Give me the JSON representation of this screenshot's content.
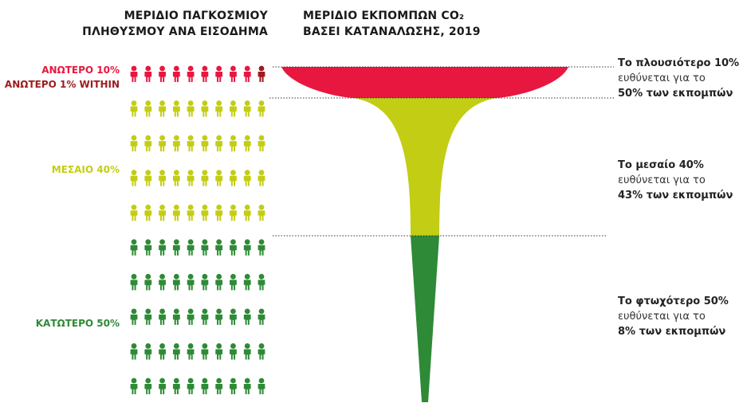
{
  "headers": {
    "population": [
      "ΜΕΡΙΔΙΟ ΠΑΓΚΟΣΜΙΟΥ",
      "ΠΛΗΘΥΣΜΟΥ ΑΝΑ ΕΙΣΟΔΗΜΑ"
    ],
    "emissions": [
      "ΜΕΡΙΔΙΟ ΕΚΠΟΜΠΩΝ CO₂",
      "ΒΑΣΕΙ ΚΑΤΑΝΑΛΩΣΗΣ, 2019"
    ]
  },
  "groups": {
    "top10": "ΑΝΩΤΕΡΟ 10%",
    "top1": "ΑΝΩΤΕΡΟ 1% WITHIN",
    "middle40": "ΜΕΣΑΙΟ 40%",
    "bottom50": "ΚΑΤΩΤΕΡΟ 50%"
  },
  "notes": [
    {
      "line1": "Το πλουσιότερο 10%",
      "line2": "ευθύνεται για το",
      "line3": "50% των εκπομπών"
    },
    {
      "line1": "Το μεσαίο 40%",
      "line2": "ευθύνεται για το",
      "line3": "43% των εκπομπών"
    },
    {
      "line1": "Το φτωχότερο 50%",
      "line2": "ευθύνεται για το",
      "line3": "8% των εκπομπών"
    }
  ],
  "colors": {
    "top10": "#e8173f",
    "top1": "#9e1b1f",
    "middle40": "#c3cd14",
    "bottom50": "#2e8a36",
    "text": "#1a1a1a"
  },
  "icon": "person-icon",
  "chart_data": {
    "type": "funnel",
    "population_share": [
      {
        "group": "ΑΝΩΤΕΡΟ 10%",
        "value": 10,
        "highlight_within": 1
      },
      {
        "group": "ΜΕΣΑΙΟ 40%",
        "value": 40
      },
      {
        "group": "ΚΑΤΩΤΕΡΟ 50%",
        "value": 50
      }
    ],
    "emissions_share": [
      {
        "group": "ΑΝΩΤΕΡΟ 10%",
        "value": 50
      },
      {
        "group": "ΜΕΣΑΙΟ 40%",
        "value": 43
      },
      {
        "group": "ΚΑΤΩΤΕΡΟ 50%",
        "value": 8
      }
    ],
    "icons_total": 100,
    "icons_per_row": 10,
    "year": 2019
  }
}
